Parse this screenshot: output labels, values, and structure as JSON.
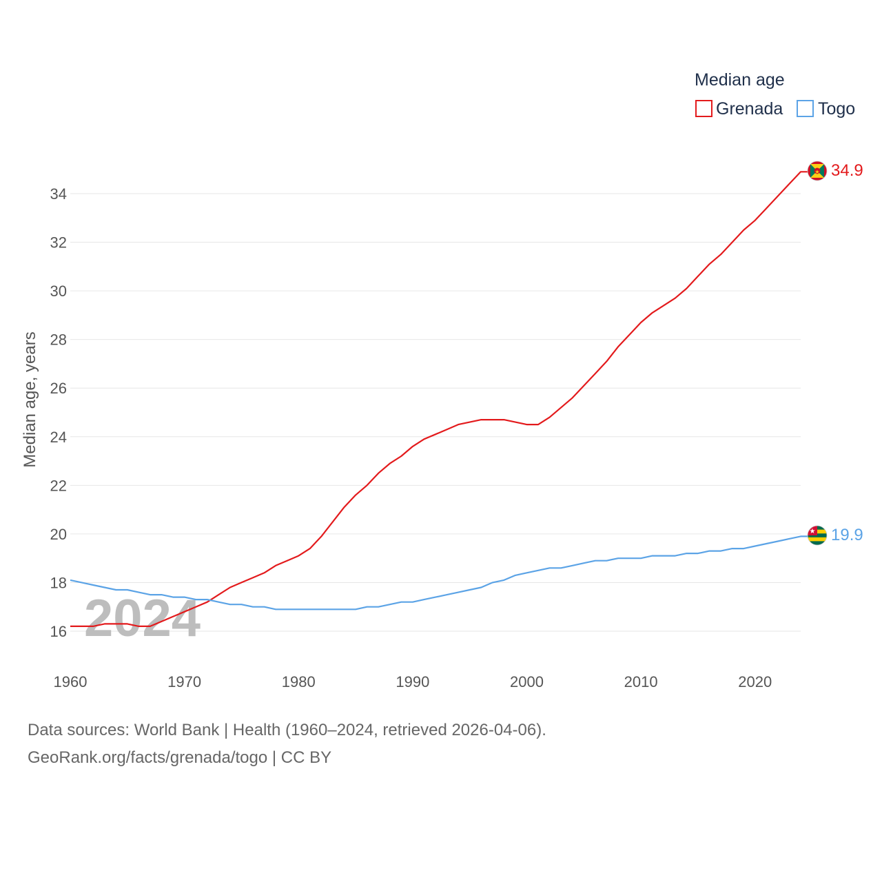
{
  "chart_data": {
    "type": "line",
    "legend": {
      "title": "Median age",
      "entries": [
        "Grenada",
        "Togo"
      ],
      "placement": "top-right"
    },
    "ylabel": "Median age, years",
    "xlabel": "",
    "x_ticks": [
      1960,
      1970,
      1980,
      1990,
      2000,
      2010,
      2020
    ],
    "y_ticks": [
      16,
      18,
      20,
      22,
      24,
      26,
      28,
      30,
      32,
      34
    ],
    "xlim": [
      1960,
      2024
    ],
    "ylim": [
      15,
      35
    ],
    "grid": true,
    "year_watermark": "2024",
    "x": [
      1960,
      1961,
      1962,
      1963,
      1964,
      1965,
      1966,
      1967,
      1968,
      1969,
      1970,
      1971,
      1972,
      1973,
      1974,
      1975,
      1976,
      1977,
      1978,
      1979,
      1980,
      1981,
      1982,
      1983,
      1984,
      1985,
      1986,
      1987,
      1988,
      1989,
      1990,
      1991,
      1992,
      1993,
      1994,
      1995,
      1996,
      1997,
      1998,
      1999,
      2000,
      2001,
      2002,
      2003,
      2004,
      2005,
      2006,
      2007,
      2008,
      2009,
      2010,
      2011,
      2012,
      2013,
      2014,
      2015,
      2016,
      2017,
      2018,
      2019,
      2020,
      2021,
      2022,
      2023,
      2024
    ],
    "series": [
      {
        "name": "Grenada",
        "color": "#e31a1c",
        "end_label": "34.9",
        "values": [
          16.2,
          16.2,
          16.2,
          16.3,
          16.3,
          16.3,
          16.2,
          16.2,
          16.4,
          16.6,
          16.8,
          17.0,
          17.2,
          17.5,
          17.8,
          18.0,
          18.2,
          18.4,
          18.7,
          18.9,
          19.1,
          19.4,
          19.9,
          20.5,
          21.1,
          21.6,
          22.0,
          22.5,
          22.9,
          23.2,
          23.6,
          23.9,
          24.1,
          24.3,
          24.5,
          24.6,
          24.7,
          24.7,
          24.7,
          24.6,
          24.5,
          24.5,
          24.8,
          25.2,
          25.6,
          26.1,
          26.6,
          27.1,
          27.7,
          28.2,
          28.7,
          29.1,
          29.4,
          29.7,
          30.1,
          30.6,
          31.1,
          31.5,
          32.0,
          32.5,
          32.9,
          33.4,
          33.9,
          34.4,
          34.9
        ]
      },
      {
        "name": "Togo",
        "color": "#5ba3e6",
        "end_label": "19.9",
        "values": [
          18.1,
          18.0,
          17.9,
          17.8,
          17.7,
          17.7,
          17.6,
          17.5,
          17.5,
          17.4,
          17.4,
          17.3,
          17.3,
          17.2,
          17.1,
          17.1,
          17.0,
          17.0,
          16.9,
          16.9,
          16.9,
          16.9,
          16.9,
          16.9,
          16.9,
          16.9,
          17.0,
          17.0,
          17.1,
          17.2,
          17.2,
          17.3,
          17.4,
          17.5,
          17.6,
          17.7,
          17.8,
          18.0,
          18.1,
          18.3,
          18.4,
          18.5,
          18.6,
          18.6,
          18.7,
          18.8,
          18.9,
          18.9,
          19.0,
          19.0,
          19.0,
          19.1,
          19.1,
          19.1,
          19.2,
          19.2,
          19.3,
          19.3,
          19.4,
          19.4,
          19.5,
          19.6,
          19.7,
          19.8,
          19.9
        ]
      }
    ]
  },
  "footer": {
    "sources": "Data sources: World Bank | Health (1960–2024, retrieved 2026-04-06).",
    "url": "GeoRank.org/facts/grenada/togo | CC BY"
  }
}
